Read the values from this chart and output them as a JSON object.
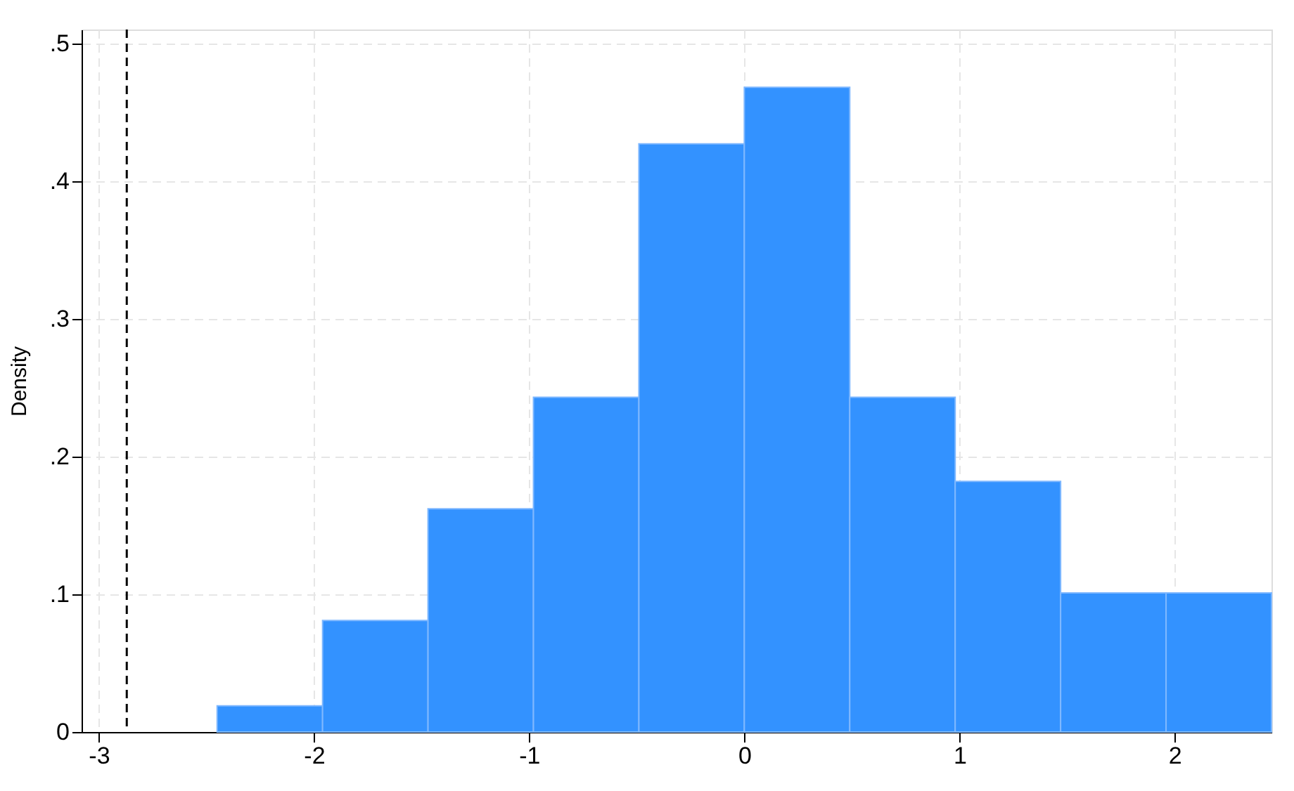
{
  "chart_data": {
    "type": "histogram",
    "ylabel": "Density",
    "bins": [
      -2.45,
      -1.96,
      -1.47,
      -0.98,
      -0.49,
      0,
      0.49,
      0.98,
      1.47,
      1.96,
      2.45
    ],
    "values": [
      0.019,
      0.081,
      0.162,
      0.243,
      0.427,
      0.468,
      0.243,
      0.182,
      0.101,
      0.101
    ],
    "color": "#3392ff",
    "xlim": [
      -3.08,
      2.45
    ],
    "xticks": [
      -3,
      -2,
      -1,
      0,
      1,
      2
    ],
    "ylim": [
      0,
      0.51
    ],
    "yticks": [
      {
        "value": 0,
        "label": "0"
      },
      {
        "value": 0.1,
        "label": ".1"
      },
      {
        "value": 0.2,
        "label": ".2"
      },
      {
        "value": 0.3,
        "label": ".3"
      },
      {
        "value": 0.4,
        "label": ".4"
      },
      {
        "value": 0.5,
        "label": ".5"
      }
    ],
    "grid": true,
    "ref_lines": [
      {
        "axis": "x",
        "value": -2.87,
        "color": "#000000",
        "line_style": "dashed"
      }
    ]
  }
}
